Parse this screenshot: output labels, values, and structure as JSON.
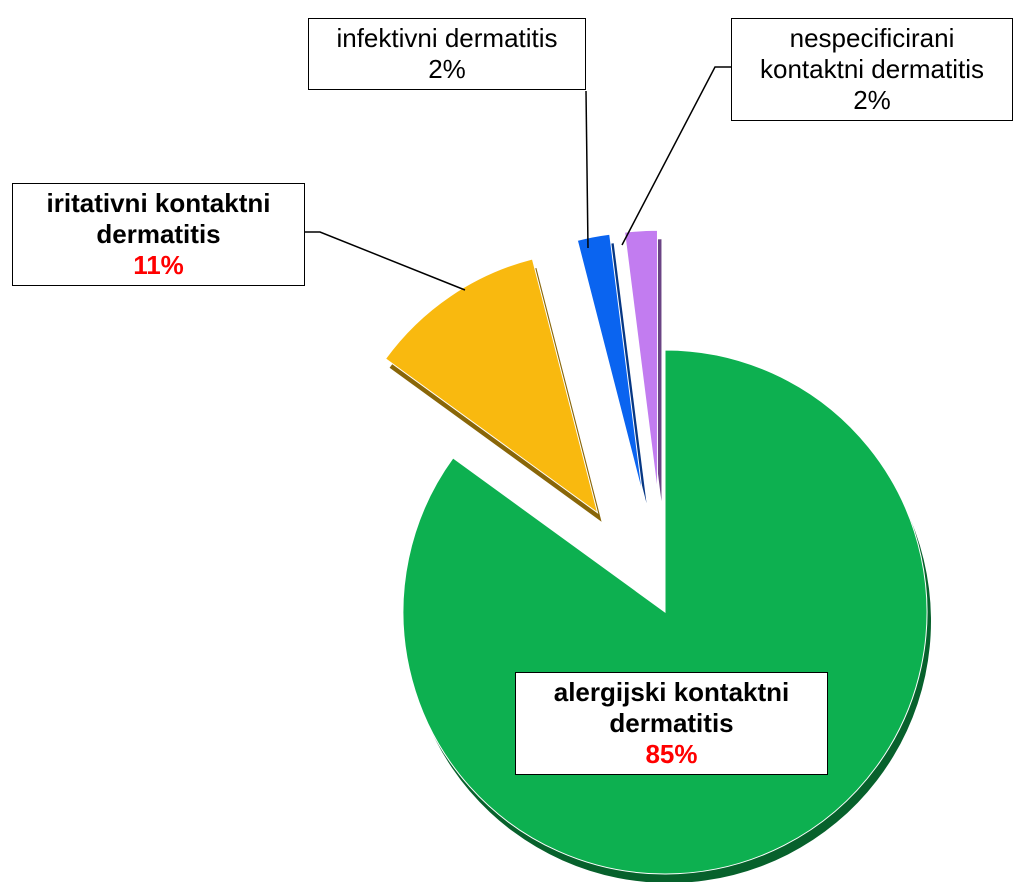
{
  "chart_data": {
    "type": "pie",
    "categories": [
      "alergijski kontaktni dermatitis",
      "iritativni kontaktni dermatitis",
      "infektivni dermatitis",
      "nespecificirani kontaktni dermatitis"
    ],
    "values": [
      85,
      11,
      2,
      2
    ],
    "value_labels": [
      "85%",
      "11%",
      "2%",
      "2%"
    ],
    "colors": [
      "#0db050",
      "#f9b90f",
      "#0a64f0",
      "#c27cf0"
    ]
  }
}
